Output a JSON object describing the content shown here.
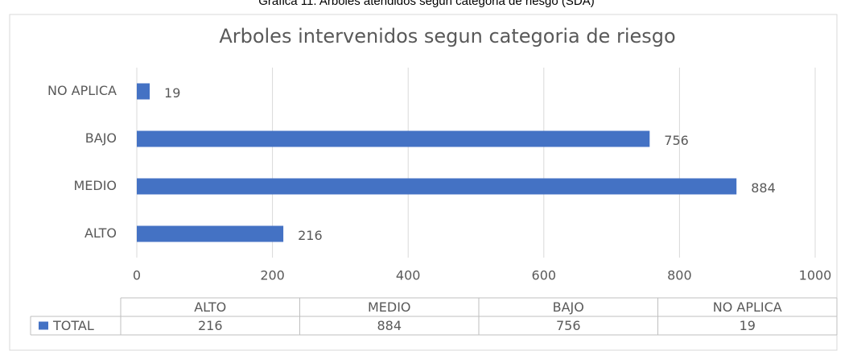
{
  "caption": "Grafica 11. Arboles atendidos segun categoria de riesgo (SDA)",
  "chart_data": {
    "type": "bar",
    "orientation": "horizontal",
    "title": "Arboles intervenidos segun categoria de riesgo",
    "categories": [
      "ALTO",
      "MEDIO",
      "BAJO",
      "NO APLICA"
    ],
    "series": [
      {
        "name": "TOTAL",
        "color": "#4472c4",
        "values": [
          216,
          884,
          756,
          19
        ]
      }
    ],
    "xlim": [
      0,
      1000
    ],
    "xticks": [
      0,
      200,
      400,
      600,
      800,
      1000
    ],
    "grid": true,
    "data_table": true
  }
}
